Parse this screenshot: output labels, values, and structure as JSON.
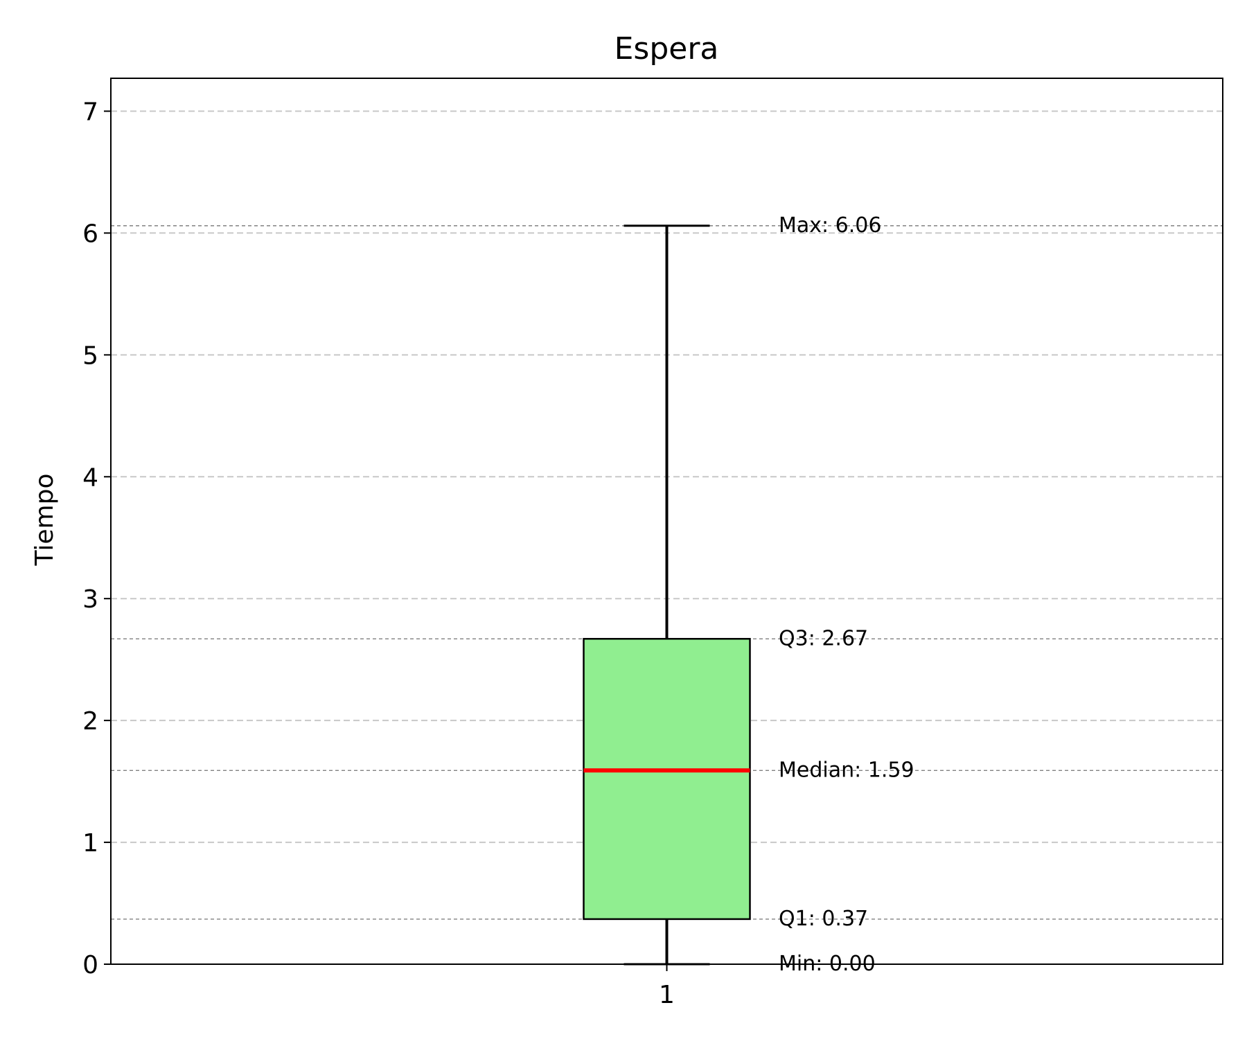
{
  "chart_data": {
    "type": "box",
    "title": "Espera",
    "xlabel": "",
    "ylabel": "Tiempo",
    "ylim": [
      0,
      7.27
    ],
    "yticks": [
      0,
      1,
      2,
      3,
      4,
      5,
      6,
      7
    ],
    "xticks": [
      "1"
    ],
    "grid": "y-dashed",
    "series": [
      {
        "category": "1",
        "min": 0.0,
        "q1": 0.37,
        "median": 1.59,
        "q3": 2.67,
        "max": 6.06
      }
    ],
    "annotations": [
      {
        "stat": "max",
        "text": "Max: 6.06"
      },
      {
        "stat": "q3",
        "text": "Q3: 2.67"
      },
      {
        "stat": "median",
        "text": "Median: 1.59"
      },
      {
        "stat": "q1",
        "text": "Q1: 0.37"
      },
      {
        "stat": "min",
        "text": "Min: 0.00"
      }
    ],
    "colors": {
      "box_fill": "#90ee90",
      "median_line": "#ff0000",
      "grid": "#c8c8c8",
      "reference_lines": "#808080"
    }
  }
}
